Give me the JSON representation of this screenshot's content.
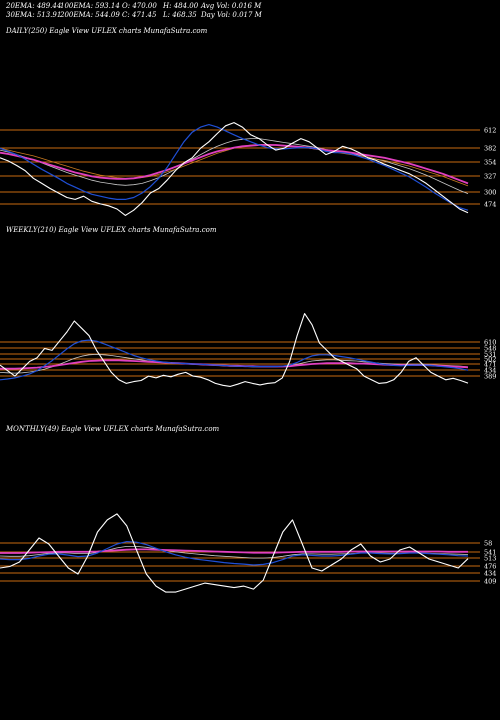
{
  "header": {
    "ema20": "20EMA: 489.44",
    "ema100": "100EMA: 593.14",
    "open": "O: 470.00",
    "high": "H: 484.00",
    "avg_vol": "Avg Vol: 0.016  M",
    "ema30": "30EMA: 513.91",
    "ema200": "200EMA: 544.09",
    "close": "C: 471.45",
    "low": "L: 468.35",
    "day_vol": "Day Vol: 0.017 M"
  },
  "colors": {
    "background": "#000000",
    "price": "#ffffff",
    "ema_fast": "#1f4fd6",
    "ema_slow": "#e040c0",
    "ema_mid": "#c8c8c8",
    "ema_orange": "#c87a20",
    "level_line": "#c86a10"
  },
  "chart_data": [
    {
      "type": "line",
      "title": "DAILY(250) Eagle  View  UFLEX  charts MunafaSutra.com",
      "level_labels": [
        "612",
        "382",
        "354",
        "327",
        "300",
        "474"
      ],
      "series": [
        {
          "role": "price",
          "values": [
            560,
            555,
            548,
            540,
            528,
            520,
            512,
            505,
            498,
            495,
            500,
            492,
            488,
            485,
            480,
            470,
            478,
            490,
            505,
            512,
            525,
            540,
            552,
            560,
            575,
            585,
            598,
            610,
            615,
            608,
            596,
            590,
            580,
            572,
            575,
            583,
            590,
            585,
            575,
            565,
            570,
            578,
            574,
            568,
            560,
            556,
            550,
            545,
            540,
            535,
            528,
            520,
            510,
            500,
            490,
            480,
            474
          ]
        },
        {
          "role": "ema-fast",
          "values": [
            575,
            570,
            565,
            558,
            550,
            542,
            535,
            528,
            520,
            514,
            508,
            503,
            500,
            497,
            495,
            495,
            498,
            505,
            515,
            528,
            545,
            565,
            585,
            600,
            608,
            612,
            608,
            602,
            596,
            590,
            585,
            580,
            576,
            574,
            574,
            575,
            576,
            576,
            574,
            570,
            568,
            568,
            566,
            562,
            558,
            553,
            548,
            542,
            536,
            530,
            522,
            514,
            505,
            497,
            489,
            482,
            478
          ]
        },
        {
          "role": "ema-slow",
          "values": [
            568,
            566,
            563,
            560,
            557,
            553,
            549,
            545,
            541,
            537,
            534,
            531,
            529,
            528,
            527,
            527,
            528,
            530,
            533,
            537,
            541,
            546,
            551,
            556,
            561,
            566,
            570,
            573,
            576,
            578,
            579,
            580,
            580,
            580,
            579,
            578,
            577,
            576,
            574,
            572,
            571,
            570,
            568,
            566,
            564,
            562,
            560,
            557,
            554,
            551,
            547,
            543,
            539,
            535,
            530,
            525,
            520
          ]
        },
        {
          "role": "ema-mid",
          "values": [
            572,
            569,
            565,
            561,
            557,
            552,
            547,
            542,
            537,
            533,
            529,
            525,
            522,
            520,
            518,
            517,
            518,
            520,
            524,
            529,
            535,
            542,
            550,
            558,
            565,
            572,
            578,
            583,
            587,
            589,
            590,
            590,
            588,
            586,
            584,
            582,
            580,
            578,
            576,
            573,
            571,
            569,
            567,
            564,
            561,
            558,
            555,
            551,
            547,
            543,
            538,
            533,
            527,
            521,
            515,
            509,
            504
          ]
        },
        {
          "role": "ema-orange",
          "values": [
            575,
            572,
            569,
            566,
            563,
            559,
            555,
            551,
            547,
            543,
            539,
            536,
            533,
            531,
            529,
            528,
            528,
            529,
            531,
            534,
            538,
            542,
            547,
            552,
            557,
            562,
            567,
            571,
            575,
            578,
            580,
            581,
            581,
            580,
            579,
            578,
            577,
            575,
            573,
            571,
            569,
            567,
            565,
            563,
            561,
            558,
            556,
            553,
            550,
            547,
            543,
            539,
            535,
            531,
            526,
            521,
            516
          ]
        }
      ]
    },
    {
      "type": "line",
      "title": "WEEKLY(210) Eagle  View  UFLEX  charts MunafaSutra.com",
      "level_labels": [
        "610",
        "548",
        "531",
        "502",
        "471",
        "434",
        "389"
      ],
      "series": [
        {
          "role": "price",
          "values": [
            520,
            505,
            490,
            510,
            530,
            540,
            565,
            560,
            585,
            610,
            640,
            620,
            600,
            560,
            530,
            500,
            480,
            470,
            475,
            478,
            490,
            485,
            492,
            488,
            495,
            500,
            490,
            487,
            480,
            470,
            465,
            462,
            468,
            475,
            470,
            466,
            470,
            472,
            485,
            530,
            600,
            660,
            630,
            580,
            560,
            540,
            530,
            520,
            510,
            490,
            480,
            470,
            472,
            480,
            500,
            530,
            540,
            520,
            500,
            490,
            480,
            484,
            478,
            471
          ]
        },
        {
          "role": "ema-fast",
          "values": [
            480,
            482,
            485,
            490,
            496,
            505,
            518,
            532,
            548,
            564,
            578,
            586,
            588,
            585,
            578,
            570,
            562,
            554,
            546,
            540,
            535,
            531,
            528,
            526,
            525,
            524,
            523,
            522,
            521,
            520,
            519,
            518,
            517,
            517,
            516,
            516,
            516,
            516,
            517,
            520,
            527,
            537,
            545,
            548,
            548,
            546,
            543,
            540,
            536,
            532,
            528,
            524,
            521,
            519,
            518,
            519,
            520,
            520,
            519,
            517,
            515,
            513,
            510,
            506
          ]
        },
        {
          "role": "ema-slow",
          "values": [
            510,
            510,
            510,
            511,
            512,
            513,
            515,
            517,
            520,
            523,
            526,
            529,
            531,
            532,
            533,
            533,
            533,
            532,
            531,
            530,
            529,
            528,
            527,
            526,
            525,
            524,
            523,
            522,
            521,
            520,
            519,
            518,
            518,
            517,
            517,
            516,
            516,
            516,
            516,
            517,
            519,
            521,
            523,
            524,
            525,
            525,
            525,
            525,
            524,
            524,
            523,
            522,
            521,
            520,
            520,
            520,
            520,
            520,
            519,
            518,
            517,
            516,
            515,
            514
          ]
        },
        {
          "role": "ema-mid",
          "values": [
            500,
            499,
            498,
            499,
            501,
            504,
            509,
            515,
            522,
            530,
            538,
            544,
            548,
            549,
            548,
            546,
            543,
            540,
            537,
            534,
            531,
            529,
            527,
            525,
            524,
            523,
            522,
            521,
            520,
            519,
            518,
            517,
            516,
            516,
            515,
            515,
            515,
            515,
            516,
            518,
            522,
            527,
            531,
            533,
            534,
            534,
            533,
            532,
            531,
            529,
            527,
            525,
            524,
            523,
            522,
            522,
            522,
            522,
            521,
            520,
            519,
            518,
            517,
            515
          ]
        }
      ]
    },
    {
      "type": "line",
      "title": "MONTHLY(49) Eagle  View  UFLEX  charts MunafaSutra.com",
      "level_labels": [
        "58",
        "541",
        "513",
        "476",
        "434",
        "409"
      ],
      "series": [
        {
          "role": "price",
          "values": [
            440,
            445,
            460,
            500,
            540,
            520,
            480,
            440,
            420,
            480,
            560,
            600,
            620,
            580,
            500,
            420,
            380,
            360,
            360,
            370,
            380,
            390,
            385,
            380,
            375,
            380,
            370,
            400,
            480,
            560,
            600,
            520,
            440,
            430,
            450,
            470,
            500,
            520,
            480,
            460,
            470,
            500,
            510,
            490,
            470,
            460,
            450,
            440,
            471
          ]
        },
        {
          "role": "ema-fast",
          "values": [
            470,
            468,
            468,
            472,
            480,
            486,
            487,
            483,
            478,
            480,
            490,
            505,
            520,
            528,
            526,
            518,
            506,
            494,
            484,
            476,
            470,
            466,
            462,
            458,
            455,
            453,
            450,
            452,
            458,
            468,
            480,
            484,
            482,
            480,
            480,
            482,
            486,
            490,
            490,
            488,
            487,
            488,
            490,
            490,
            488,
            486,
            484,
            481,
            480
          ]
        },
        {
          "role": "ema-slow",
          "values": [
            490,
            490,
            490,
            491,
            492,
            493,
            494,
            494,
            494,
            494,
            495,
            497,
            499,
            501,
            502,
            502,
            501,
            500,
            499,
            498,
            497,
            496,
            495,
            494,
            493,
            492,
            491,
            491,
            491,
            492,
            493,
            494,
            494,
            494,
            494,
            494,
            495,
            495,
            495,
            495,
            495,
            495,
            495,
            495,
            495,
            495,
            494,
            494,
            494
          ]
        },
        {
          "role": "ema-mid",
          "values": [
            480,
            479,
            479,
            481,
            485,
            489,
            491,
            490,
            488,
            488,
            492,
            499,
            507,
            512,
            512,
            509,
            504,
            499,
            494,
            490,
            487,
            484,
            481,
            479,
            477,
            475,
            473,
            473,
            475,
            479,
            484,
            487,
            487,
            486,
            486,
            487,
            488,
            490,
            490,
            490,
            489,
            489,
            490,
            490,
            489,
            488,
            487,
            486,
            485
          ]
        }
      ]
    }
  ]
}
